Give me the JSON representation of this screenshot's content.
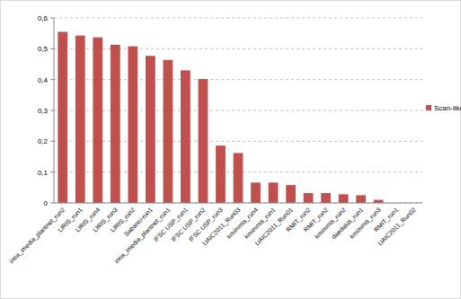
{
  "chart_data": {
    "type": "bar",
    "categories": [
      "inria_imedia_plantnet_run2",
      "LIRIS_run1",
      "LIRIS_run4",
      "LIRIS_run3",
      "LIRIS_run2",
      "Sabanci-run1",
      "inria_imedia_plantnet_run1",
      "IFSC USP_run1",
      "IFSC USP_run2",
      "IFSC USP_run3",
      "UAIC2011_Run03",
      "kmimmis_run4",
      "kmimmis_run1",
      "UAIC2011_Run01",
      "RMIT_run2",
      "RMIT_run2",
      "kmimmis_run2",
      "daedalus_run1",
      "kmimmis_run3",
      "RMIT_run1",
      "UAIC2011_Run02"
    ],
    "series": [
      {
        "name": "Scan-like",
        "color": "#c0504d",
        "values": [
          0.555,
          0.543,
          0.537,
          0.513,
          0.508,
          0.477,
          0.464,
          0.43,
          0.402,
          0.186,
          0.162,
          0.066,
          0.066,
          0.058,
          0.032,
          0.032,
          0.028,
          0.025,
          0.01,
          0,
          0
        ]
      }
    ],
    "ylim": [
      0,
      0.6
    ],
    "yticks": [
      0,
      {
        "value": 0.1,
        "label": "0,1"
      },
      {
        "value": 0.2,
        "label": "0,2"
      },
      {
        "value": 0.3,
        "label": "0,3"
      },
      {
        "value": 0.4,
        "label": "0,4"
      },
      {
        "value": 0.5,
        "label": "0,5"
      },
      {
        "value": 0.6,
        "label": "0,6"
      }
    ],
    "grid": true,
    "legend": "right"
  }
}
